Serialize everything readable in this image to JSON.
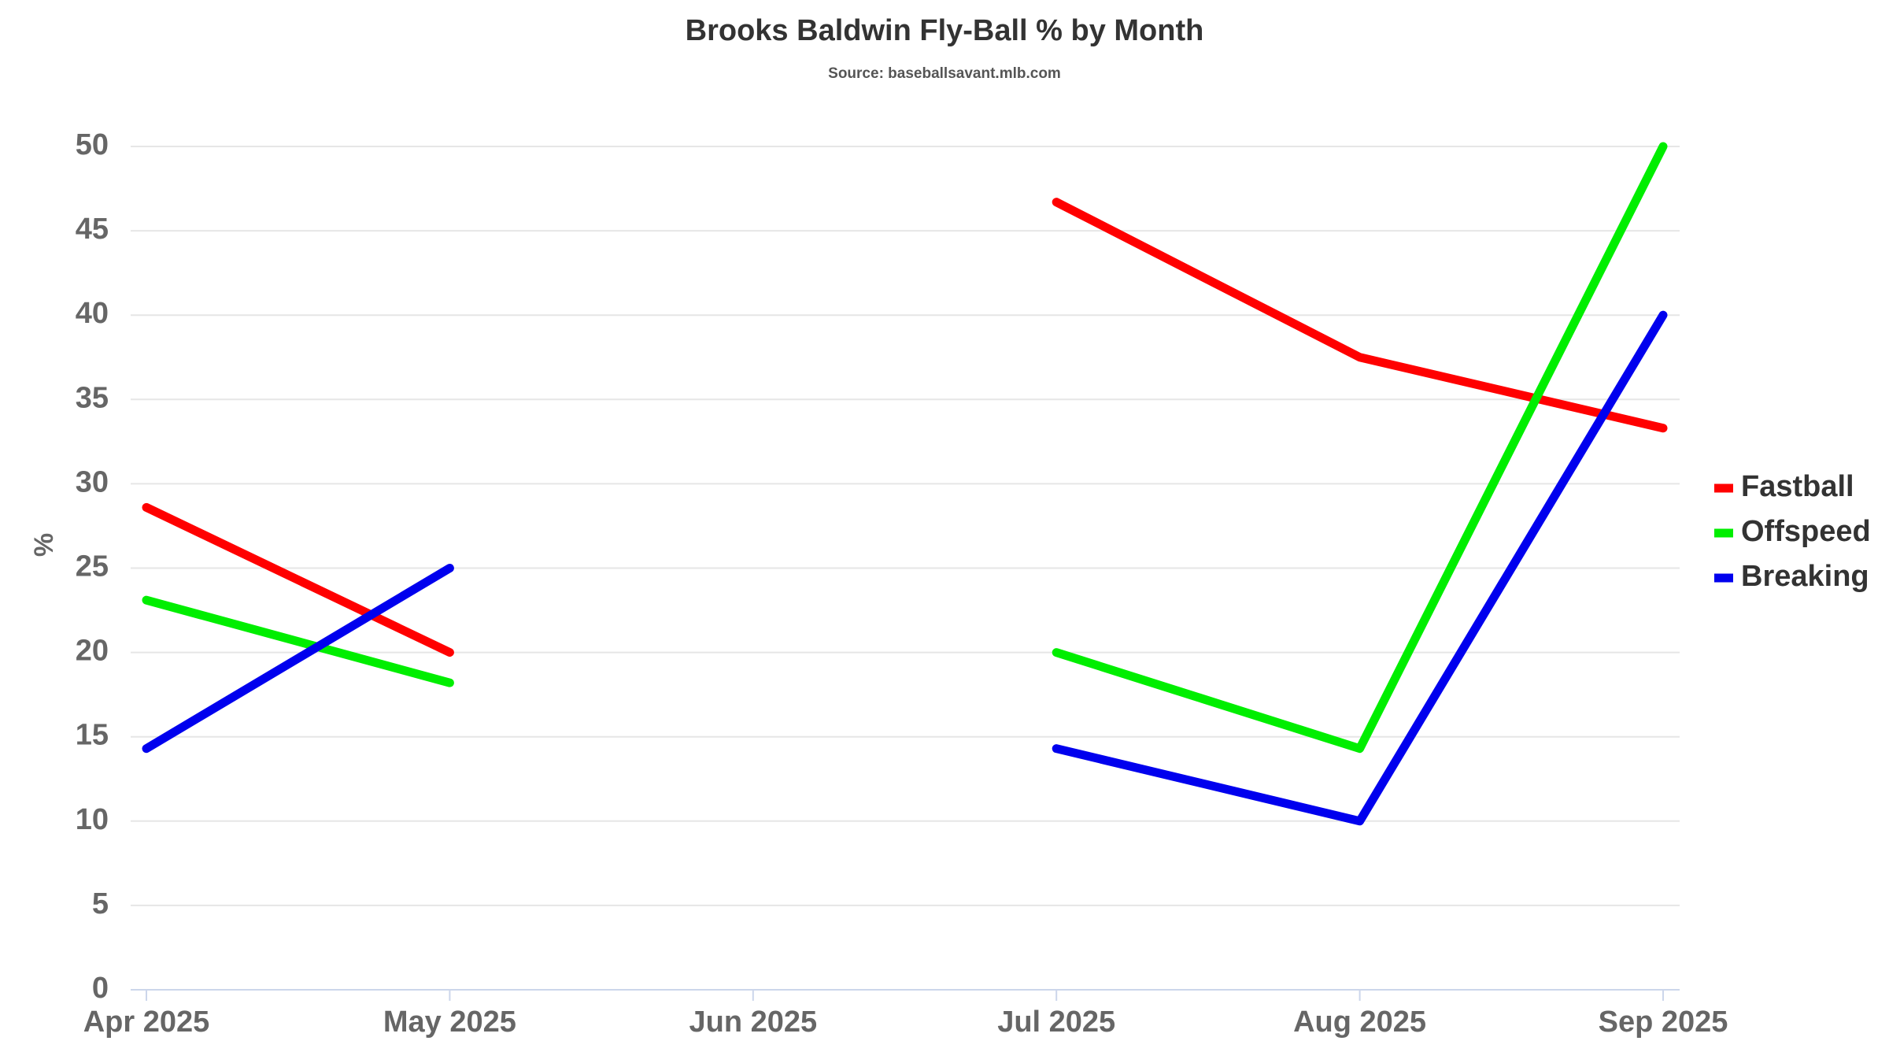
{
  "chart_data": {
    "type": "line",
    "title": "Brooks Baldwin Fly-Ball % by Month",
    "subtitle": "Source: baseballsavant.mlb.com",
    "y_label": "%",
    "categories": [
      "Apr 2025",
      "May 2025",
      "Jun 2025",
      "Jul 2025",
      "Aug 2025",
      "Sep 2025"
    ],
    "series": [
      {
        "name": "Fastball",
        "color": "#ff0000",
        "values": [
          28.6,
          20,
          null,
          46.7,
          37.5,
          33.3
        ]
      },
      {
        "name": "Offspeed",
        "color": "#00ee00",
        "values": [
          23.1,
          18.2,
          null,
          20,
          14.3,
          50
        ]
      },
      {
        "name": "Breaking",
        "color": "#0000ee",
        "values": [
          14.3,
          25,
          null,
          14.3,
          10,
          40
        ]
      }
    ],
    "ylim": [
      0,
      50
    ],
    "yticks": [
      0,
      5,
      10,
      15,
      20,
      25,
      30,
      35,
      40,
      45,
      50
    ],
    "grid": true,
    "legend": "right"
  }
}
